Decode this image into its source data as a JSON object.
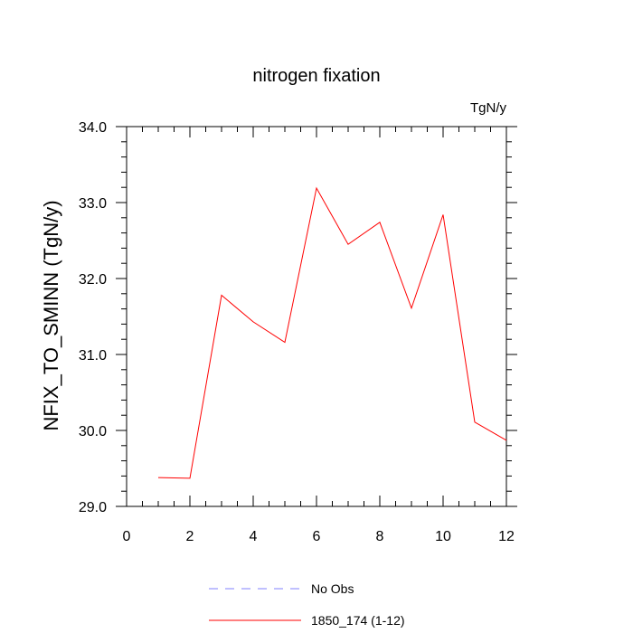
{
  "chart_data": {
    "type": "line",
    "title": "nitrogen fixation",
    "units_label": "TgN/y",
    "ylabel": "NFIX_TO_SMINN  (TgN/y)",
    "xlabel": "",
    "xlim": [
      0,
      12
    ],
    "ylim": [
      29.0,
      34.0
    ],
    "x_ticks": [
      0,
      2,
      4,
      6,
      8,
      10,
      12
    ],
    "x_tick_labels": [
      "0",
      "2",
      "4",
      "6",
      "8",
      "10",
      "12"
    ],
    "y_ticks": [
      29.0,
      30.0,
      31.0,
      32.0,
      33.0,
      34.0
    ],
    "y_tick_labels": [
      "29.0",
      "30.0",
      "31.0",
      "32.0",
      "33.0",
      "34.0"
    ],
    "grid": false,
    "legend_position": "bottom-center",
    "series": [
      {
        "name": "1850_174 (1-12)",
        "color": "#ff0000",
        "dash": "solid",
        "x": [
          1,
          2,
          3,
          4,
          5,
          6,
          7,
          8,
          9,
          10,
          11,
          12
        ],
        "values": [
          29.38,
          29.37,
          31.78,
          31.43,
          31.16,
          33.19,
          32.45,
          32.74,
          31.61,
          32.84,
          30.11,
          29.87
        ]
      }
    ],
    "legend": [
      {
        "label": "No Obs",
        "color": "#8080ff",
        "dash": "dashed"
      },
      {
        "label": "1850_174 (1-12)",
        "color": "#ff0000",
        "dash": "solid"
      }
    ]
  }
}
